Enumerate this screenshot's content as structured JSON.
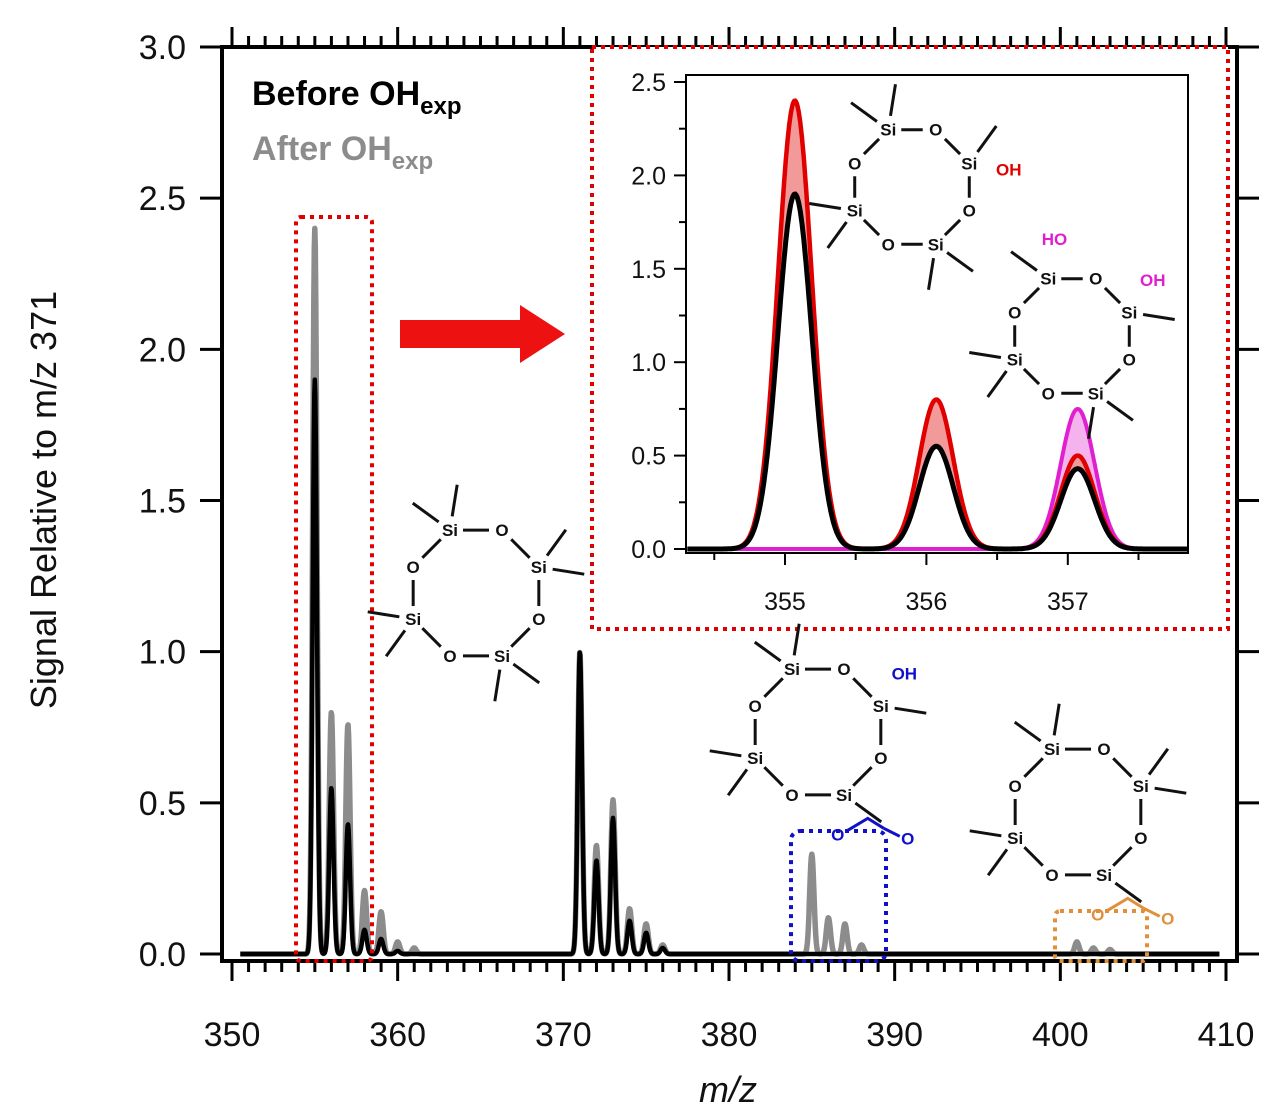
{
  "colors": {
    "before": "#000000",
    "after": "#8c8c8c",
    "highlight_red": "#e00000",
    "highlight_red_fill": "#f29a9a",
    "highlight_magenta": "#e020d0",
    "highlight_magenta_fill": "#f5b3ee",
    "box_blue": "#1010c8",
    "box_orange": "#e0903a",
    "arrow": "#ee1111"
  },
  "chart_data": [
    {
      "type": "line",
      "xlabel": "m/z",
      "ylabel": "Signal Relative to m/z 371",
      "xlim": [
        350,
        410
      ],
      "ylim": [
        0,
        3.0
      ],
      "x_ticks": [
        "350",
        "360",
        "370",
        "380",
        "390",
        "400",
        "410"
      ],
      "y_ticks": [
        "0.0",
        "0.5",
        "1.0",
        "1.5",
        "2.0",
        "2.5",
        "3.0"
      ],
      "legend": [
        {
          "label": "Before OH",
          "sub": "exp"
        },
        {
          "label": "After OH",
          "sub": "exp"
        }
      ],
      "legend_placement": "top-left",
      "series": [
        {
          "name": "Before OHexp",
          "peaks": [
            {
              "x": 355,
              "y": 1.9
            },
            {
              "x": 356,
              "y": 0.55
            },
            {
              "x": 357,
              "y": 0.43
            },
            {
              "x": 358,
              "y": 0.08
            },
            {
              "x": 359,
              "y": 0.05
            },
            {
              "x": 360,
              "y": 0.01
            },
            {
              "x": 371,
              "y": 1.0
            },
            {
              "x": 372,
              "y": 0.31
            },
            {
              "x": 373,
              "y": 0.45
            },
            {
              "x": 374,
              "y": 0.11
            },
            {
              "x": 375,
              "y": 0.07
            },
            {
              "x": 376,
              "y": 0.02
            },
            {
              "x": 385,
              "y": 0.0
            },
            {
              "x": 401,
              "y": 0.0
            }
          ]
        },
        {
          "name": "After OHexp",
          "peaks": [
            {
              "x": 355,
              "y": 2.4
            },
            {
              "x": 356,
              "y": 0.8
            },
            {
              "x": 357,
              "y": 0.76
            },
            {
              "x": 358,
              "y": 0.21
            },
            {
              "x": 359,
              "y": 0.14
            },
            {
              "x": 360,
              "y": 0.04
            },
            {
              "x": 361,
              "y": 0.02
            },
            {
              "x": 371,
              "y": 1.0
            },
            {
              "x": 372,
              "y": 0.36
            },
            {
              "x": 373,
              "y": 0.51
            },
            {
              "x": 374,
              "y": 0.15
            },
            {
              "x": 375,
              "y": 0.1
            },
            {
              "x": 376,
              "y": 0.03
            },
            {
              "x": 385,
              "y": 0.33
            },
            {
              "x": 386,
              "y": 0.12
            },
            {
              "x": 387,
              "y": 0.1
            },
            {
              "x": 388,
              "y": 0.03
            },
            {
              "x": 401,
              "y": 0.04
            },
            {
              "x": 402,
              "y": 0.02
            },
            {
              "x": 403,
              "y": 0.015
            }
          ]
        }
      ],
      "annotations": {
        "mol_center": {
          "si": "Si",
          "o": "O"
        },
        "mol_blue": {
          "si": "Si",
          "o": "O",
          "oh": "OH",
          "ester_o": "O"
        },
        "mol_orange": {
          "si": "Si",
          "o": "O",
          "ester_o": "O"
        }
      }
    },
    {
      "type": "area",
      "role": "inset",
      "xlim": [
        354.3,
        357.85
      ],
      "ylim": [
        0,
        2.5
      ],
      "x_ticks": [
        "355",
        "356",
        "357"
      ],
      "y_ticks": [
        "0.0",
        "0.5",
        "1.0",
        "1.5",
        "2.0",
        "2.5"
      ],
      "series": [
        {
          "name": "After OHexp (OH added)",
          "peaks": [
            {
              "x": 355.07,
              "y": 2.4
            },
            {
              "x": 356.07,
              "y": 0.8
            },
            {
              "x": 357.07,
              "y": 0.5
            }
          ]
        },
        {
          "name": "After OHexp (2 OH added)",
          "peaks": [
            {
              "x": 357.07,
              "y": 0.75
            }
          ]
        },
        {
          "name": "Before OHexp",
          "peaks": [
            {
              "x": 355.07,
              "y": 1.9
            },
            {
              "x": 356.07,
              "y": 0.55
            },
            {
              "x": 357.07,
              "y": 0.43
            }
          ]
        }
      ],
      "annotations": {
        "mol_oh": {
          "si": "Si",
          "o": "O",
          "oh": "OH"
        },
        "mol_diol": {
          "si": "Si",
          "o": "O",
          "oh_left": "HO",
          "oh_right": "OH"
        }
      }
    }
  ]
}
